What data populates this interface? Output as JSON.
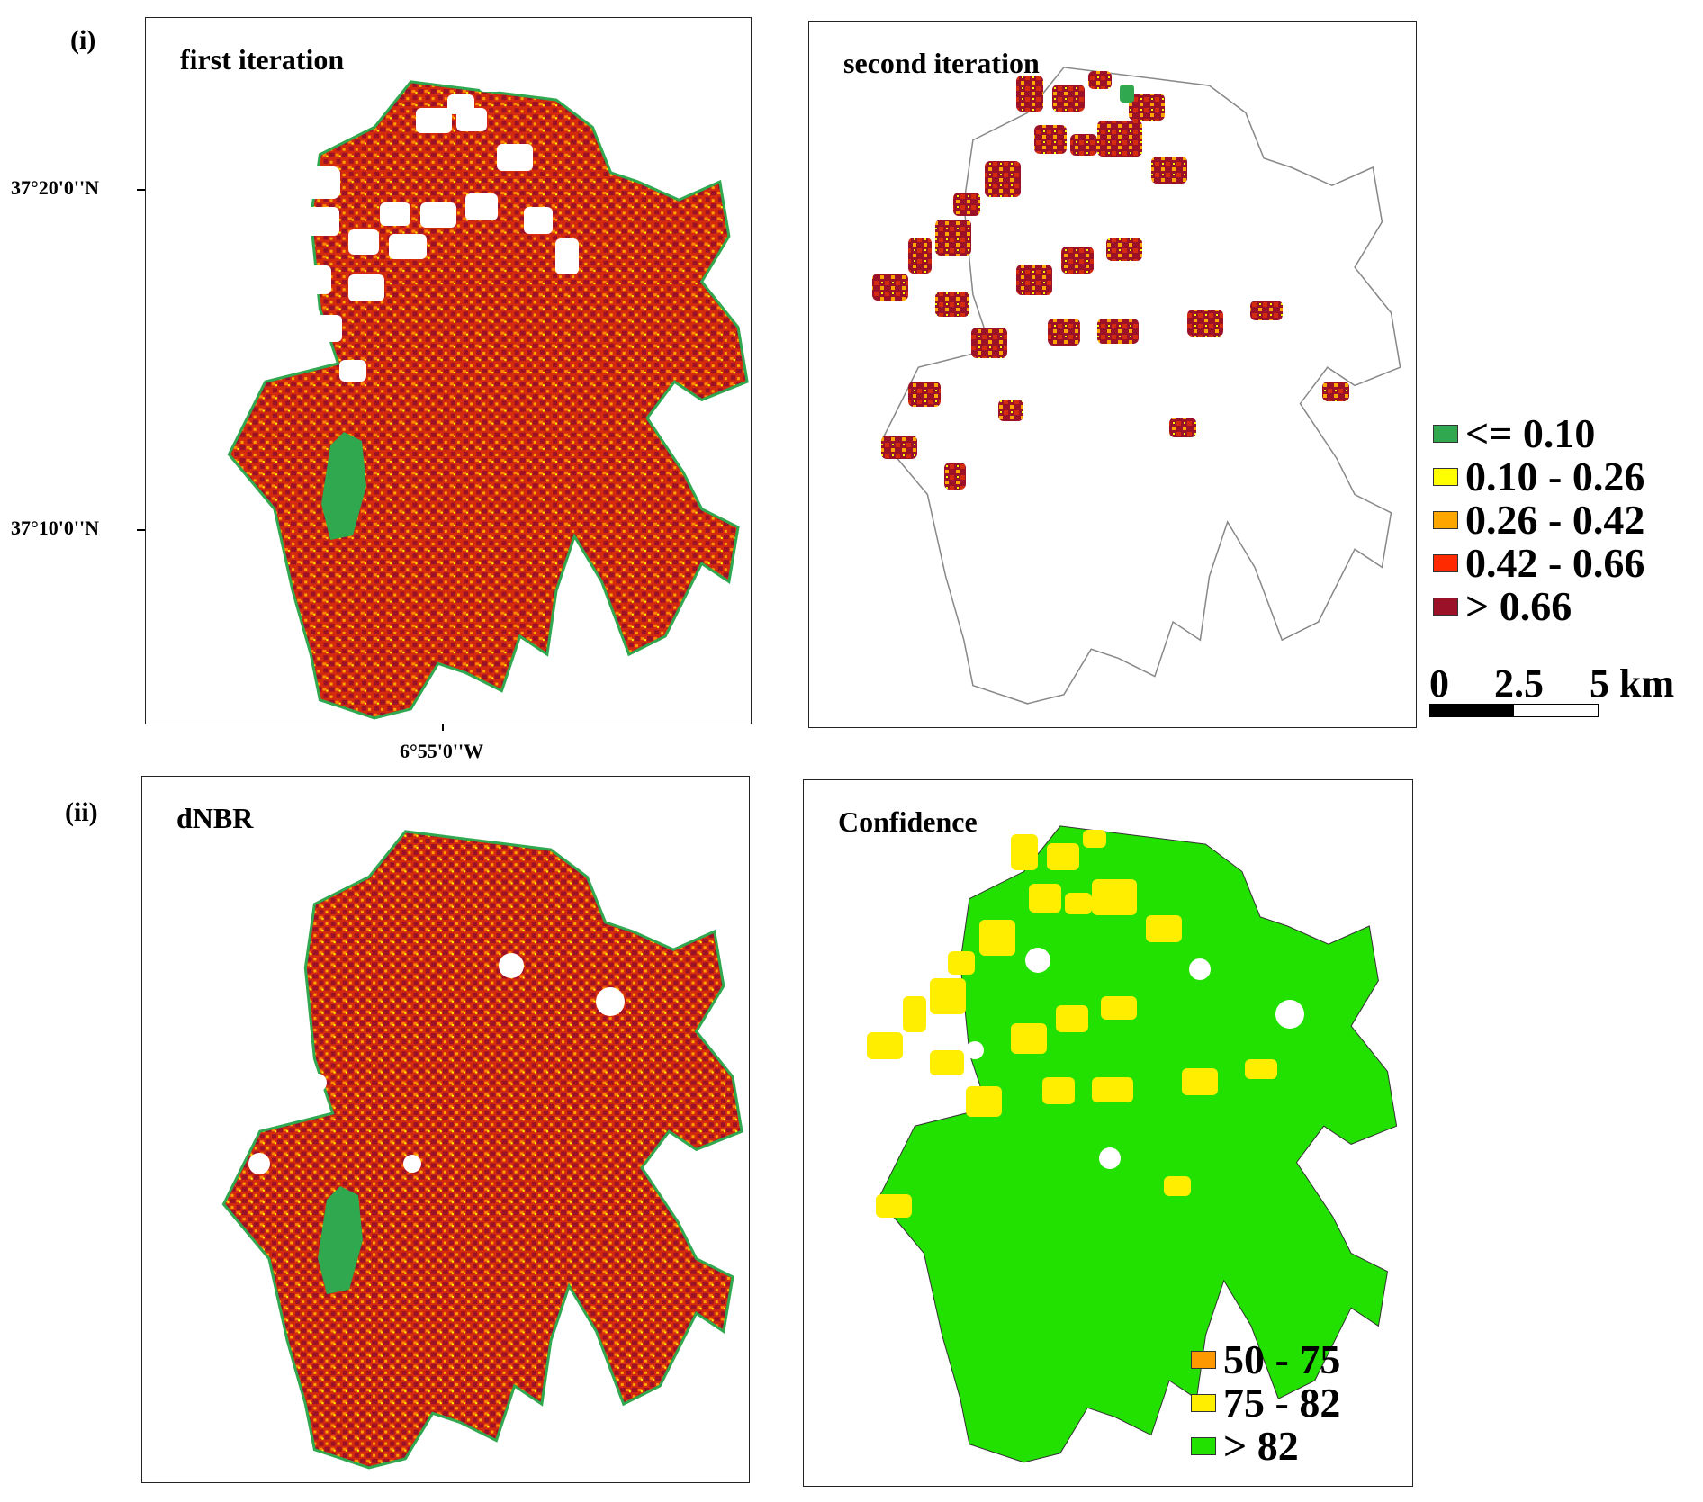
{
  "labels": {
    "part_i": "(i)",
    "part_ii": "(ii)"
  },
  "panels": {
    "first_iteration": {
      "title": "first iteration"
    },
    "second_iteration": {
      "title": "second iteration"
    },
    "dnbr": {
      "title": "dNBR"
    },
    "confidence": {
      "title": "Confidence"
    }
  },
  "axes": {
    "lat_upper": "37°20'0''N",
    "lat_lower": "37°10'0''N",
    "lon": "6°55'0''W"
  },
  "severity_legend": {
    "items": [
      {
        "label": "<= 0.10",
        "color": "#2fa84f"
      },
      {
        "label": "0.10 - 0.26",
        "color": "#ffff00"
      },
      {
        "label": "0.26 - 0.42",
        "color": "#ffa500"
      },
      {
        "label": "0.42 - 0.66",
        "color": "#ff2a00"
      },
      {
        "label": "> 0.66",
        "color": "#9b1128"
      }
    ]
  },
  "scale_bar": {
    "labels": [
      "0",
      "2.5",
      "5 km"
    ]
  },
  "confidence_legend": {
    "items": [
      {
        "label": "50 - 75",
        "color": "#ff9900"
      },
      {
        "label": "75 - 82",
        "color": "#ffee00"
      },
      {
        "label": "> 82",
        "color": "#22e000"
      }
    ]
  }
}
